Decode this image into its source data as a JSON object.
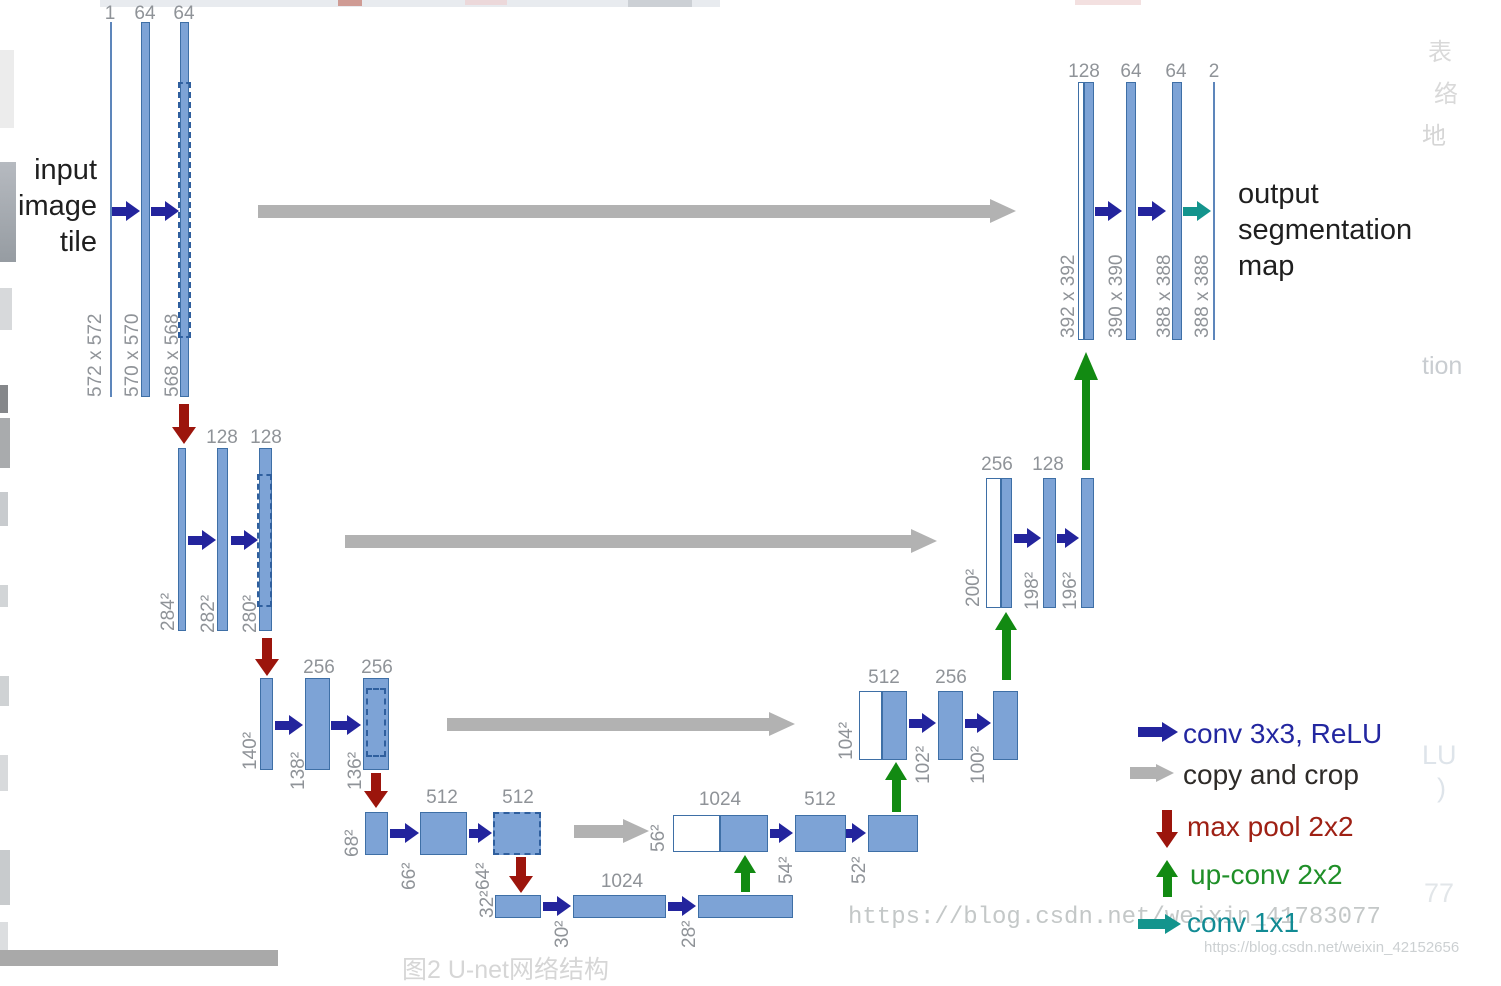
{
  "page": {
    "description": "U-Net convolutional network architecture diagram (blog screenshot)"
  },
  "texts": {
    "input_caption": {
      "lines": [
        "input",
        "image",
        "tile"
      ]
    },
    "output_caption": {
      "lines": [
        "output",
        "segmentation",
        "map"
      ]
    }
  },
  "network": {
    "encoder": [
      {
        "channels": [
          "1",
          "64",
          "64"
        ],
        "sizes": [
          "572 x 572",
          "570 x 570",
          "568 x 568"
        ]
      },
      {
        "channels": [
          "128",
          "128"
        ],
        "sizes": [
          "284²",
          "282²",
          "280²"
        ]
      },
      {
        "channels": [
          "256",
          "256"
        ],
        "sizes": [
          "140²",
          "138²",
          "136²"
        ]
      },
      {
        "channels": [
          "512",
          "512"
        ],
        "sizes": [
          "68²",
          "66²",
          "64²"
        ]
      }
    ],
    "bottleneck": {
      "channels": [
        "1024"
      ],
      "sizes": [
        "32²",
        "30²",
        "28²"
      ]
    },
    "decoder": [
      {
        "channels": [
          "1024",
          "512"
        ],
        "sizes": [
          "56²",
          "54²",
          "52²"
        ]
      },
      {
        "channels": [
          "512",
          "256"
        ],
        "sizes": [
          "104²",
          "102²",
          "100²"
        ]
      },
      {
        "channels": [
          "256",
          "128"
        ],
        "sizes": [
          "200²",
          "198²",
          "196²"
        ]
      }
    ],
    "output_stage": {
      "channels": [
        "128",
        "64",
        "64",
        "2"
      ],
      "sizes": [
        "392 x 392",
        "390 x 390",
        "388 x 388",
        "388 x 388"
      ]
    }
  },
  "legend": {
    "items": [
      {
        "label": "conv 3x3, ReLU",
        "text_color": "#2327a0",
        "arrow": "right",
        "arrow_color": "#23249d"
      },
      {
        "label": "copy and crop",
        "text_color": "#2e2b28",
        "arrow": "right",
        "arrow_color": "#b2b2b2"
      },
      {
        "label": "max pool 2x2",
        "text_color": "#9e2014",
        "arrow": "down",
        "arrow_color": "#9c150c"
      },
      {
        "label": "up-conv 2x2",
        "text_color": "#1f8f28",
        "arrow": "up",
        "arrow_color": "#128a12"
      },
      {
        "label": "conv 1x1",
        "text_color": "#128b94",
        "arrow": "right",
        "arrow_color": "#13948d"
      }
    ]
  },
  "watermarks": {
    "url_large": "https://blog.csdn.net/weixin_41783077",
    "url_small": "https://blog.csdn.net/weixin_42152656",
    "figure_caption": "图2  U-net网络结构",
    "ghosts": [
      "表",
      "络",
      "地",
      "tion",
      "LU",
      ")",
      "77"
    ]
  },
  "colors": {
    "bar_fill": "#7da3d6",
    "bar_border": "#3e6fa6",
    "dashed_border": "#2f5f9e",
    "thin_line": "#5d86bb",
    "white_fill": "#ffffff",
    "conv_arrow": "#23249d",
    "copy_arrow": "#b2b2b2",
    "pool_arrow": "#9c150c",
    "up_arrow": "#128a12",
    "final_arrow": "#13948d",
    "number_label": "#8f9398",
    "caption_text": "#1f1f1f"
  }
}
